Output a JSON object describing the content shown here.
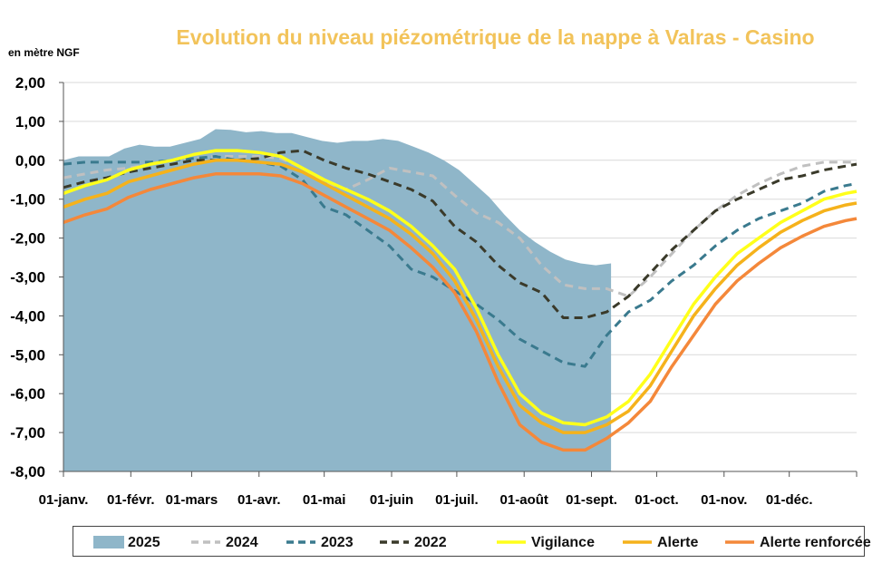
{
  "chart_data": {
    "type": "line",
    "title": "Evolution du niveau piézométrique de la nappe à Valras - Casino",
    "ylabel": "en mètre NGF",
    "ylim": [
      -8,
      2
    ],
    "yticks": [
      2,
      1,
      0,
      -1,
      -2,
      -3,
      -4,
      -5,
      -6,
      -7,
      -8
    ],
    "ytick_labels": [
      "2,00",
      "1,00",
      "0,00",
      "-1,00",
      "-2,00",
      "-3,00",
      "-4,00",
      "-5,00",
      "-6,00",
      "-7,00",
      "-8,00"
    ],
    "xlim": [
      1,
      366
    ],
    "xticks": [
      1,
      32,
      60,
      91,
      121,
      152,
      182,
      213,
      244,
      274,
      305,
      335
    ],
    "xtick_labels": [
      "01-janv.",
      "01-févr.",
      "01-mars",
      "01-avr.",
      "01-mai",
      "01-juin",
      "01-juil.",
      "01-août",
      "01-sept.",
      "01-oct.",
      "01-nov.",
      "01-déc."
    ],
    "grid": "horizontal",
    "legend_position": "bottom",
    "series": [
      {
        "name": "2025",
        "style": "area",
        "color": "#8fb6c9",
        "x": [
          1,
          8,
          15,
          22,
          29,
          36,
          43,
          50,
          57,
          64,
          71,
          78,
          85,
          92,
          99,
          106,
          113,
          120,
          127,
          134,
          141,
          148,
          155,
          162,
          169,
          176,
          183,
          190,
          197,
          204,
          211,
          218,
          225,
          232,
          239,
          246,
          253
        ],
        "y": [
          0.0,
          0.1,
          0.1,
          0.1,
          0.3,
          0.4,
          0.35,
          0.35,
          0.45,
          0.55,
          0.8,
          0.78,
          0.72,
          0.75,
          0.7,
          0.7,
          0.6,
          0.5,
          0.45,
          0.5,
          0.5,
          0.55,
          0.5,
          0.35,
          0.2,
          0.0,
          -0.25,
          -0.6,
          -0.95,
          -1.4,
          -1.8,
          -2.1,
          -2.35,
          -2.55,
          -2.65,
          -2.7,
          -2.65
        ]
      },
      {
        "name": "2024",
        "style": "dashed",
        "color": "#c0c0c0",
        "x": [
          1,
          11,
          21,
          31,
          41,
          51,
          61,
          71,
          81,
          91,
          101,
          111,
          121,
          131,
          141,
          151,
          161,
          171,
          181,
          191,
          201,
          211,
          221,
          231,
          241,
          251,
          261,
          271,
          281,
          291,
          301,
          311,
          321,
          331,
          341,
          351,
          361,
          366
        ],
        "y": [
          -0.45,
          -0.35,
          -0.25,
          -0.2,
          -0.1,
          0.0,
          0.05,
          0.1,
          0.1,
          0.1,
          0.05,
          -0.2,
          -0.55,
          -0.75,
          -0.5,
          -0.2,
          -0.3,
          -0.4,
          -0.9,
          -1.35,
          -1.6,
          -2.0,
          -2.7,
          -3.2,
          -3.3,
          -3.3,
          -3.5,
          -3.0,
          -2.4,
          -1.8,
          -1.3,
          -0.9,
          -0.6,
          -0.35,
          -0.15,
          -0.05,
          -0.05,
          -0.05
        ]
      },
      {
        "name": "2023",
        "style": "dashed",
        "color": "#3a7a8e",
        "x": [
          1,
          11,
          21,
          31,
          41,
          51,
          61,
          71,
          81,
          91,
          101,
          111,
          121,
          131,
          141,
          151,
          161,
          171,
          181,
          191,
          201,
          211,
          221,
          231,
          241,
          251,
          261,
          271,
          281,
          291,
          301,
          311,
          321,
          331,
          341,
          351,
          361,
          366
        ],
        "y": [
          -0.1,
          -0.05,
          -0.05,
          -0.05,
          -0.05,
          0.0,
          0.05,
          0.1,
          0.0,
          -0.05,
          -0.15,
          -0.5,
          -1.2,
          -1.4,
          -1.8,
          -2.2,
          -2.8,
          -3.0,
          -3.35,
          -3.7,
          -4.1,
          -4.6,
          -4.9,
          -5.2,
          -5.3,
          -4.5,
          -3.9,
          -3.6,
          -3.1,
          -2.7,
          -2.2,
          -1.8,
          -1.5,
          -1.3,
          -1.1,
          -0.8,
          -0.65,
          -0.6
        ]
      },
      {
        "name": "2022",
        "style": "dashed",
        "color": "#3a3a2a",
        "x": [
          1,
          11,
          21,
          31,
          41,
          51,
          61,
          71,
          81,
          91,
          101,
          111,
          121,
          131,
          141,
          151,
          161,
          171,
          181,
          191,
          201,
          211,
          221,
          231,
          241,
          251,
          261,
          271,
          281,
          291,
          301,
          311,
          321,
          331,
          341,
          351,
          361,
          366
        ],
        "y": [
          -0.7,
          -0.55,
          -0.45,
          -0.3,
          -0.2,
          -0.1,
          0.0,
          0.0,
          0.0,
          0.05,
          0.2,
          0.25,
          0.0,
          -0.2,
          -0.35,
          -0.55,
          -0.75,
          -1.05,
          -1.7,
          -2.1,
          -2.7,
          -3.15,
          -3.4,
          -4.05,
          -4.05,
          -3.9,
          -3.5,
          -2.9,
          -2.3,
          -1.8,
          -1.3,
          -1.0,
          -0.75,
          -0.5,
          -0.4,
          -0.25,
          -0.15,
          -0.1
        ]
      },
      {
        "name": "Vigilance",
        "style": "solid",
        "color": "#ffff1a",
        "x": [
          1,
          11,
          21,
          31,
          41,
          51,
          61,
          71,
          81,
          91,
          101,
          111,
          121,
          131,
          141,
          151,
          161,
          171,
          181,
          191,
          201,
          211,
          221,
          231,
          241,
          251,
          261,
          271,
          281,
          291,
          301,
          311,
          321,
          331,
          341,
          351,
          361,
          366
        ],
        "y": [
          -0.85,
          -0.65,
          -0.5,
          -0.25,
          -0.1,
          0.0,
          0.15,
          0.25,
          0.25,
          0.2,
          0.1,
          -0.2,
          -0.5,
          -0.75,
          -1.0,
          -1.3,
          -1.7,
          -2.2,
          -2.8,
          -3.8,
          -5.0,
          -6.0,
          -6.5,
          -6.75,
          -6.8,
          -6.6,
          -6.2,
          -5.5,
          -4.6,
          -3.7,
          -3.0,
          -2.4,
          -2.0,
          -1.6,
          -1.3,
          -1.0,
          -0.85,
          -0.8
        ]
      },
      {
        "name": "Alerte",
        "style": "solid",
        "color": "#f5b21b",
        "x": [
          1,
          11,
          21,
          31,
          41,
          51,
          61,
          71,
          81,
          91,
          101,
          111,
          121,
          131,
          141,
          151,
          161,
          171,
          181,
          191,
          201,
          211,
          221,
          231,
          241,
          251,
          261,
          271,
          281,
          291,
          301,
          311,
          321,
          331,
          341,
          351,
          361,
          366
        ],
        "y": [
          -1.2,
          -1.0,
          -0.85,
          -0.55,
          -0.4,
          -0.25,
          -0.1,
          0.0,
          0.0,
          -0.05,
          -0.1,
          -0.3,
          -0.6,
          -0.9,
          -1.2,
          -1.5,
          -1.9,
          -2.4,
          -3.1,
          -4.1,
          -5.3,
          -6.3,
          -6.75,
          -7.0,
          -7.0,
          -6.8,
          -6.45,
          -5.8,
          -4.9,
          -4.0,
          -3.3,
          -2.7,
          -2.25,
          -1.85,
          -1.55,
          -1.3,
          -1.15,
          -1.1
        ]
      },
      {
        "name": "Alerte renforcée",
        "style": "solid",
        "color": "#f4883a",
        "x": [
          1,
          11,
          21,
          31,
          41,
          51,
          61,
          71,
          81,
          91,
          101,
          111,
          121,
          131,
          141,
          151,
          161,
          171,
          181,
          191,
          201,
          211,
          221,
          231,
          241,
          251,
          261,
          271,
          281,
          291,
          301,
          311,
          321,
          331,
          341,
          351,
          361,
          366
        ],
        "y": [
          -1.6,
          -1.4,
          -1.25,
          -0.95,
          -0.75,
          -0.6,
          -0.45,
          -0.35,
          -0.35,
          -0.35,
          -0.4,
          -0.6,
          -0.9,
          -1.2,
          -1.5,
          -1.8,
          -2.25,
          -2.75,
          -3.4,
          -4.4,
          -5.7,
          -6.8,
          -7.25,
          -7.45,
          -7.45,
          -7.15,
          -6.75,
          -6.2,
          -5.3,
          -4.5,
          -3.7,
          -3.1,
          -2.65,
          -2.25,
          -1.95,
          -1.7,
          -1.55,
          -1.5
        ]
      }
    ]
  }
}
